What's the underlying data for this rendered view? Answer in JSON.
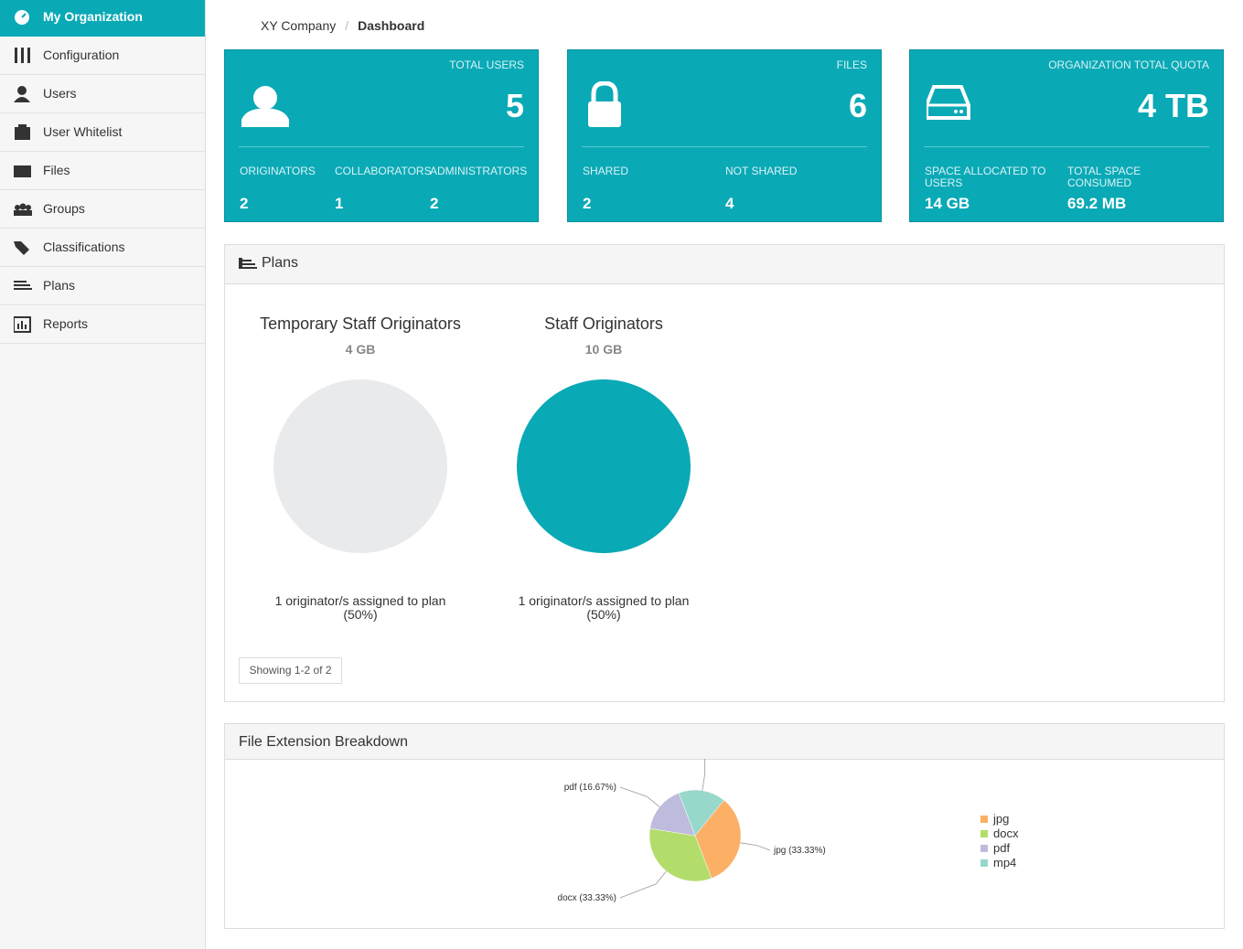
{
  "sidebar": {
    "items": [
      {
        "label": "My Organization",
        "active": true
      },
      {
        "label": "Configuration",
        "active": false
      },
      {
        "label": "Users",
        "active": false
      },
      {
        "label": "User Whitelist",
        "active": false
      },
      {
        "label": "Files",
        "active": false
      },
      {
        "label": "Groups",
        "active": false
      },
      {
        "label": "Classifications",
        "active": false
      },
      {
        "label": "Plans",
        "active": false
      },
      {
        "label": "Reports",
        "active": false
      }
    ]
  },
  "breadcrumb": {
    "items": [
      "XY Company",
      "Dashboard"
    ],
    "separator": "/"
  },
  "cards": [
    {
      "title": "TOTAL USERS",
      "value": 5,
      "stats": [
        {
          "label": "ORIGINATORS",
          "value": 2
        },
        {
          "label": "COLLABORATORS",
          "value": 1
        },
        {
          "label": "ADMINISTRATORS",
          "value": 2
        }
      ]
    },
    {
      "title": "FILES",
      "value": 6,
      "stats": [
        {
          "label": "SHARED",
          "value": 2
        },
        {
          "label": "NOT SHARED",
          "value": 4
        }
      ]
    },
    {
      "title": "ORGANIZATION TOTAL QUOTA",
      "value": "4 TB",
      "stats": [
        {
          "label": "SPACE ALLOCATED TO USERS",
          "value": "14 GB"
        },
        {
          "label": "TOTAL SPACE CONSUMED",
          "value": "69.2 MB"
        }
      ]
    }
  ],
  "plans": {
    "title": "Plans",
    "items": [
      {
        "name": "Temporary Staff Originators",
        "quota": "4 GB",
        "color": "#e9eaeb",
        "caption": "1 originator/s assigned to plan (50%)"
      },
      {
        "name": "Staff Originators",
        "quota": "10 GB",
        "color": "#0aa9b6",
        "caption": "1 originator/s assigned to plan (50%)"
      }
    ],
    "pager": "Showing 1-2 of 2"
  },
  "file_extensions": {
    "title": "File Extension Breakdown",
    "chart_data": {
      "type": "pie",
      "categories": [
        "jpg",
        "docx",
        "pdf",
        "mp4"
      ],
      "values": [
        33.33,
        33.33,
        16.67,
        16.67
      ],
      "value_labels": [
        "jpg (33.33%)",
        "docx (33.33%)",
        "pdf (16.67%)",
        null
      ],
      "colors": [
        "#fbb065",
        "#b3dd6b",
        "#bebcdd",
        "#97d8cb"
      ]
    }
  }
}
